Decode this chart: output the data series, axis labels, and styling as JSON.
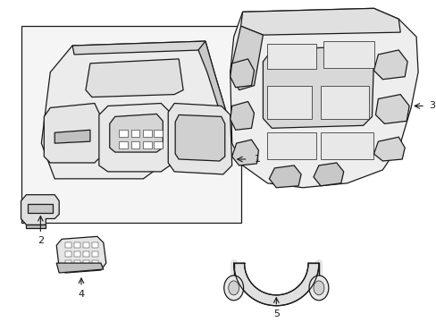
{
  "background_color": "#ffffff",
  "line_color": "#1a1a1a",
  "fill_color": "#f2f2f2",
  "lw_main": 0.9,
  "lw_thin": 0.5,
  "figsize": [
    4.89,
    3.6
  ],
  "dpi": 100
}
